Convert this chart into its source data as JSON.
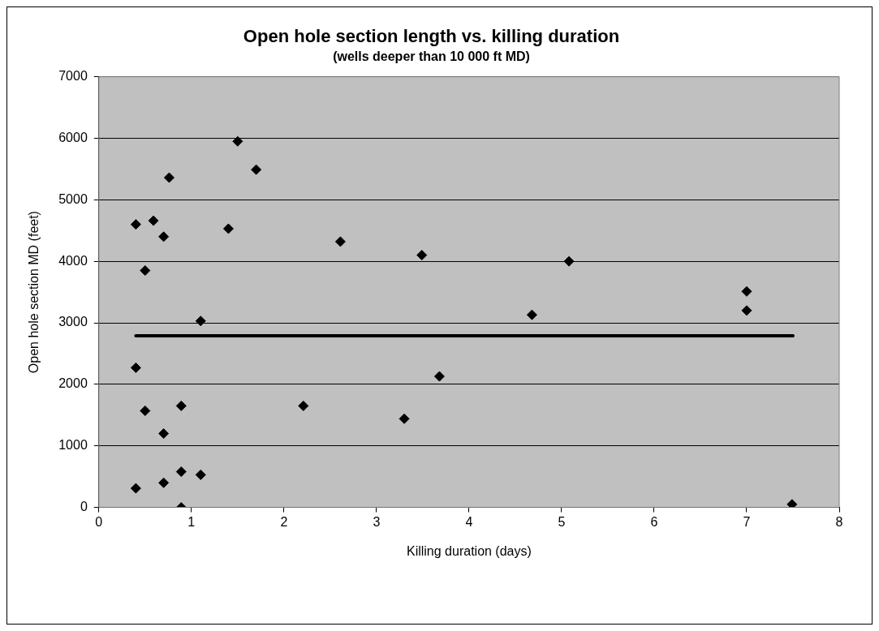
{
  "chart_data": {
    "type": "scatter",
    "title": "Open hole section length vs. killing duration",
    "subtitle": "(wells deeper than 10 000 ft MD)",
    "xlabel": "Killing duration (days)",
    "ylabel": "Open hole section MD (feet)",
    "xlim": [
      0,
      8
    ],
    "xticks": [
      0,
      1,
      2,
      3,
      4,
      5,
      6,
      7,
      8
    ],
    "ylim": [
      0,
      7000
    ],
    "yticks": [
      0,
      1000,
      2000,
      3000,
      4000,
      5000,
      6000,
      7000
    ],
    "grid": "y",
    "legend": false,
    "marker": "diamond",
    "series": [
      {
        "color": "#000000",
        "x": [
          0.4,
          0.59,
          0.7,
          0.5,
          0.76,
          1.5,
          1.7,
          1.4,
          2.61,
          1.1,
          0.4,
          0.5,
          0.89,
          2.21,
          0.7,
          0.4,
          0.7,
          0.89,
          1.1,
          0.89,
          3.49,
          5.08,
          7,
          7,
          4.68,
          3.68,
          3.3,
          7.49
        ],
        "values": [
          4600,
          4660,
          4400,
          3850,
          5360,
          5950,
          5490,
          4530,
          4320,
          3030,
          2270,
          1570,
          1650,
          1650,
          1200,
          310,
          400,
          580,
          530,
          0,
          4100,
          4000,
          3510,
          3200,
          3130,
          2130,
          1440,
          50
        ]
      },
      {
        "type": "line",
        "color": "#000000",
        "x": [
          0.4,
          7.5
        ],
        "values": [
          2790,
          2790
        ],
        "marker": "none"
      }
    ]
  }
}
